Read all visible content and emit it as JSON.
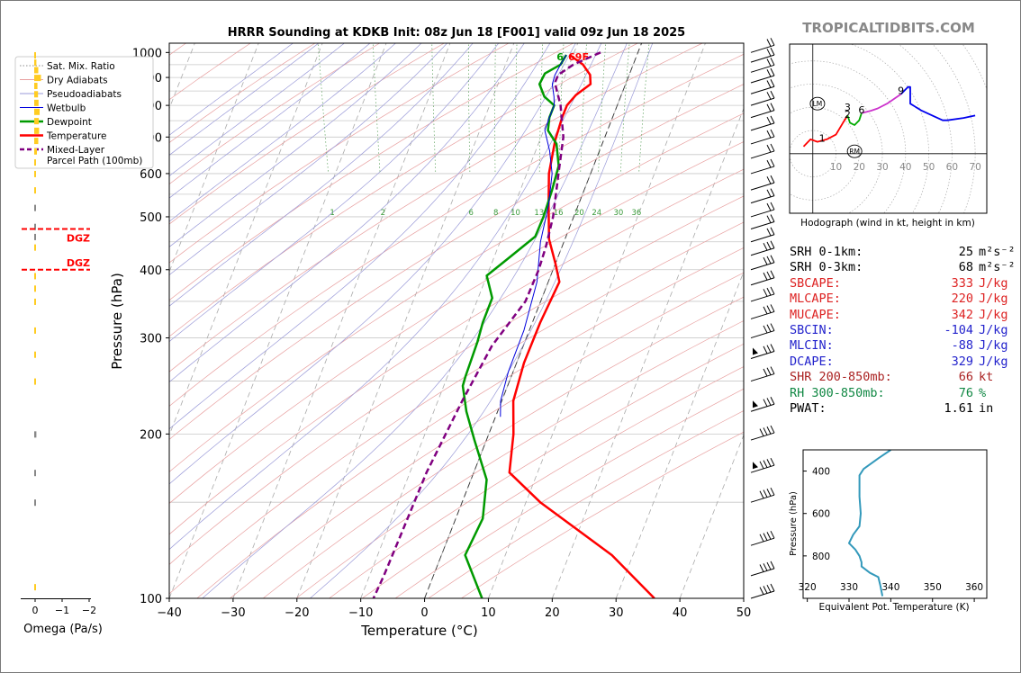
{
  "watermark": "TROPICALTIDBITS.COM",
  "chart_data": [
    {
      "type": "line",
      "name": "skew-t",
      "title": "HRRR Sounding at KDKB Init: 08z Jun 18 [F001] valid 09z Jun 18 2025",
      "xlabel": "Temperature (°C)",
      "ylabel": "Pressure (hPa)",
      "xlim": [
        -40,
        50
      ],
      "ylim": [
        1040,
        100
      ],
      "y_scale": "log",
      "x_ticks": [
        "−40",
        "−30",
        "−20",
        "−10",
        "0",
        "10",
        "20",
        "30",
        "40",
        "50"
      ],
      "y_ticks": [
        "100",
        "200",
        "300",
        "400",
        "500",
        "600",
        "700",
        "800",
        "900",
        "1000"
      ],
      "legend": {
        "placement": "top-left",
        "items": [
          {
            "label": "Sat. Mix. Ratio",
            "color": "#8c8c8c",
            "style": "dotted"
          },
          {
            "label": "Dry Adiabats",
            "color": "#e8a0a0",
            "style": "solid"
          },
          {
            "label": "Pseudoadiabats",
            "color": "#9a9ad8",
            "style": "solid"
          },
          {
            "label": "Wetbulb",
            "color": "#0000dd",
            "style": "solid"
          },
          {
            "label": "Dewpoint",
            "color": "#009a00",
            "style": "solid"
          },
          {
            "label": "Temperature",
            "color": "#ff0000",
            "style": "solid"
          },
          {
            "label": "Mixed-Layer\nParcel Path (100mb)",
            "color": "#800080",
            "style": "dashed"
          }
        ]
      },
      "mixing_ratio_labels": [
        "1",
        "2",
        "6",
        "8",
        "10",
        "13",
        "16",
        "20",
        "24",
        "30",
        "36"
      ],
      "surface_labels": {
        "dewpoint": "6",
        "temperature": "69F"
      },
      "series": [
        {
          "name": "Temperature",
          "color": "#ff0000",
          "points": [
            [
              22,
              990
            ],
            [
              23.5,
              950
            ],
            [
              24,
              910
            ],
            [
              23.5,
              875
            ],
            [
              20.5,
              835
            ],
            [
              18.5,
              800
            ],
            [
              17,
              760
            ],
            [
              14.5,
              690
            ],
            [
              11.5,
              600
            ],
            [
              9.5,
              525
            ],
            [
              7.5,
              455
            ],
            [
              7,
              410
            ],
            [
              6.5,
              380
            ],
            [
              1,
              320
            ],
            [
              -4,
              270
            ],
            [
              -8,
              230
            ],
            [
              -10,
              200
            ],
            [
              -13,
              170
            ],
            [
              -10,
              150
            ],
            [
              -2,
              120
            ],
            [
              2,
              100
            ]
          ]
        },
        {
          "name": "Dewpoint",
          "color": "#009a00",
          "points": [
            [
              21.5,
              990
            ],
            [
              20,
              950
            ],
            [
              17,
              915
            ],
            [
              15.5,
              875
            ],
            [
              15.5,
              830
            ],
            [
              16.5,
              800
            ],
            [
              15,
              760
            ],
            [
              14,
              720
            ],
            [
              14.5,
              680
            ],
            [
              13.5,
              620
            ],
            [
              11,
              560
            ],
            [
              8,
              500
            ],
            [
              5.5,
              460
            ],
            [
              0,
              420
            ],
            [
              -4.5,
              390
            ],
            [
              -5,
              355
            ],
            [
              -8,
              320
            ],
            [
              -10,
              295
            ],
            [
              -14,
              255
            ],
            [
              -15,
              245
            ],
            [
              -16,
              220
            ],
            [
              -16.5,
              195
            ],
            [
              -17,
              165
            ],
            [
              -20,
              140
            ],
            [
              -25,
              120
            ],
            [
              -25,
              100
            ]
          ]
        },
        {
          "name": "Wetbulb",
          "color": "#0000dd",
          "points": [
            [
              21.5,
              990
            ],
            [
              20,
              950
            ],
            [
              18.5,
              910
            ],
            [
              17.5,
              875
            ],
            [
              17,
              830
            ],
            [
              16.5,
              800
            ],
            [
              15,
              760
            ],
            [
              13.5,
              720
            ],
            [
              13,
              660
            ],
            [
              12,
              600
            ],
            [
              9.5,
              525
            ],
            [
              6,
              450
            ],
            [
              3,
              380
            ],
            [
              -2,
              310
            ],
            [
              -7,
              260
            ],
            [
              -10,
              230
            ],
            [
              -11,
              215
            ]
          ]
        },
        {
          "name": "Mixed-Layer Parcel Path (100mb)",
          "color": "#800080",
          "dashed": true,
          "points": [
            [
              27,
              1000
            ],
            [
              22,
              950
            ],
            [
              19,
              910
            ],
            [
              18,
              880
            ],
            [
              17.5,
              800
            ],
            [
              16,
              700
            ],
            [
              13,
              600
            ],
            [
              9.5,
              500
            ],
            [
              6.5,
              440
            ],
            [
              4,
              400
            ],
            [
              0,
              350
            ],
            [
              -8,
              290
            ],
            [
              -16,
              230
            ],
            [
              -26,
              170
            ],
            [
              -34,
              130
            ],
            [
              -39,
              110
            ],
            [
              -42,
              100
            ]
          ]
        }
      ]
    },
    {
      "type": "bar",
      "name": "omega",
      "xlabel": "Omega (Pa/s)",
      "x_ticks": [
        "0",
        "−1",
        "−2"
      ],
      "xlim": [
        0.1,
        -2.3
      ],
      "dgz_label": "DGZ",
      "dgz_bounds_hpa": [
        400,
        475
      ],
      "bars": [
        {
          "p": 105,
          "w": 0.03
        },
        {
          "p": 150,
          "w": 0.03
        },
        {
          "p": 170,
          "w": 0.04
        },
        {
          "p": 200,
          "w": 0.08
        },
        {
          "p": 250,
          "w": 0.02
        },
        {
          "p": 280,
          "w": 0.02
        },
        {
          "p": 310,
          "w": 0.03
        },
        {
          "p": 350,
          "w": 0.04
        },
        {
          "p": 370,
          "w": 0.05
        },
        {
          "p": 390,
          "w": 0.05
        },
        {
          "p": 440,
          "w": 0.06
        },
        {
          "p": 460,
          "w": 0.06
        },
        {
          "p": 480,
          "w": 0.05
        },
        {
          "p": 520,
          "w": 0.04
        },
        {
          "p": 560,
          "w": 0.03
        },
        {
          "p": 600,
          "w": 0.05
        },
        {
          "p": 630,
          "w": 0.06
        },
        {
          "p": 660,
          "w": 0.1
        },
        {
          "p": 690,
          "w": 0.15
        },
        {
          "p": 720,
          "w": 0.18
        },
        {
          "p": 750,
          "w": 0.17
        },
        {
          "p": 780,
          "w": 0.2
        },
        {
          "p": 810,
          "w": 0.16
        },
        {
          "p": 840,
          "w": 0.14
        },
        {
          "p": 870,
          "w": 0.12
        },
        {
          "p": 900,
          "w": 0.25
        },
        {
          "p": 930,
          "w": 0.15
        },
        {
          "p": 960,
          "w": 0.08
        },
        {
          "p": 990,
          "w": 0.04
        }
      ]
    },
    {
      "type": "line",
      "name": "hodograph",
      "xlabel": "Hodograph (wind in kt, height in km)",
      "x_ticks": [
        "10",
        "20",
        "30",
        "40",
        "50",
        "60",
        "70"
      ],
      "xlim": [
        -10,
        75
      ],
      "ylim": [
        -25,
        46
      ],
      "storm_motion": [
        {
          "label": "LM",
          "u": 2,
          "v": 21
        },
        {
          "label": "RM",
          "u": 18,
          "v": 1
        }
      ],
      "height_labels": [
        {
          "t": "1",
          "u": 4,
          "v": 5
        },
        {
          "t": "3",
          "u": 15,
          "v": 18
        },
        {
          "t": "2",
          "u": 15,
          "v": 15
        },
        {
          "t": "6",
          "u": 21,
          "v": 17
        },
        {
          "t": "9",
          "u": 38,
          "v": 25
        }
      ],
      "segments": [
        {
          "color": "#ff0000",
          "points": [
            [
              -4,
              3
            ],
            [
              -1,
              6
            ],
            [
              2,
              5
            ],
            [
              6,
              6
            ],
            [
              10,
              8
            ],
            [
              13,
              13
            ],
            [
              15,
              16
            ]
          ]
        },
        {
          "color": "#00aa00",
          "points": [
            [
              15,
              16
            ],
            [
              16,
              13
            ],
            [
              18,
              12
            ],
            [
              20,
              14
            ],
            [
              21,
              17
            ]
          ]
        },
        {
          "color": "#cc33cc",
          "points": [
            [
              21,
              17
            ],
            [
              25,
              18
            ],
            [
              28,
              19
            ],
            [
              32,
              21
            ],
            [
              38,
              25
            ]
          ]
        },
        {
          "color": "#0000ee",
          "points": [
            [
              38,
              25
            ],
            [
              41,
              28
            ],
            [
              42,
              28
            ],
            [
              42,
              21
            ],
            [
              47,
              18
            ],
            [
              56,
              14
            ],
            [
              58,
              14
            ],
            [
              65,
              15
            ],
            [
              70,
              16
            ]
          ]
        }
      ]
    },
    {
      "type": "line",
      "name": "theta-e",
      "xlabel": "Equivalent Pot. Temperature (K)",
      "ylabel": "Pressure (hPa)",
      "x_ticks": [
        "320",
        "330",
        "340",
        "350",
        "360"
      ],
      "y_ticks": [
        "400",
        "600",
        "800"
      ],
      "xlim": [
        319,
        363
      ],
      "ylim": [
        1000,
        300
      ],
      "color": "#3399bb",
      "points": [
        [
          340,
          300
        ],
        [
          337,
          340
        ],
        [
          333.5,
          390
        ],
        [
          332.5,
          420
        ],
        [
          332.5,
          520
        ],
        [
          332.8,
          600
        ],
        [
          332.5,
          660
        ],
        [
          331,
          700
        ],
        [
          330,
          740
        ],
        [
          331.5,
          770
        ],
        [
          332.5,
          800
        ],
        [
          333,
          830
        ],
        [
          333,
          850
        ],
        [
          335,
          880
        ],
        [
          337,
          900
        ],
        [
          337.5,
          940
        ],
        [
          338,
          990
        ]
      ]
    }
  ],
  "stats": [
    {
      "key": "SRH 0-1km:",
      "value": "25",
      "unit": "m²s⁻²",
      "color": "#000000"
    },
    {
      "key": "SRH 0-3km:",
      "value": "68",
      "unit": "m²s⁻²",
      "color": "#000000"
    },
    {
      "key": "SBCAPE:",
      "value": "333",
      "unit": "J/kg",
      "color": "#dd2222"
    },
    {
      "key": "MLCAPE:",
      "value": "220",
      "unit": "J/kg",
      "color": "#dd2222"
    },
    {
      "key": "MUCAPE:",
      "value": "342",
      "unit": "J/kg",
      "color": "#dd2222"
    },
    {
      "key": "SBCIN:",
      "value": "-104",
      "unit": "J/kg",
      "color": "#2222cc"
    },
    {
      "key": "MLCIN:",
      "value": "-88",
      "unit": "J/kg",
      "color": "#2222cc"
    },
    {
      "key": "DCAPE:",
      "value": "329",
      "unit": "J/kg",
      "color": "#2222cc"
    },
    {
      "key": "SHR 200-850mb:",
      "value": "66",
      "unit": "kt",
      "color": "#aa2222"
    },
    {
      "key": "RH 300-850mb:",
      "value": "76",
      "unit": "%",
      "color": "#118844"
    },
    {
      "key": "PWAT:",
      "value": "1.61",
      "unit": "in",
      "color": "#000000"
    }
  ]
}
